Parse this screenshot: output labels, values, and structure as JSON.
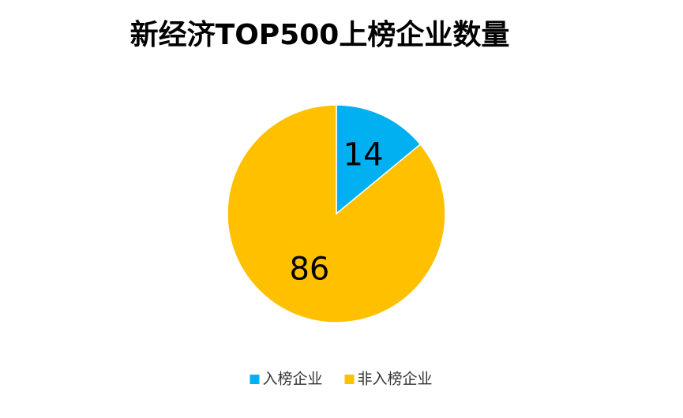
{
  "chart_data": {
    "type": "pie",
    "title": "新经济TOP500上榜企业数量",
    "categories": [
      "入榜企业",
      "非入榜企业"
    ],
    "values": [
      14,
      86
    ],
    "colors": [
      "#00b0f0",
      "#ffc000"
    ],
    "legend": "bottom"
  }
}
